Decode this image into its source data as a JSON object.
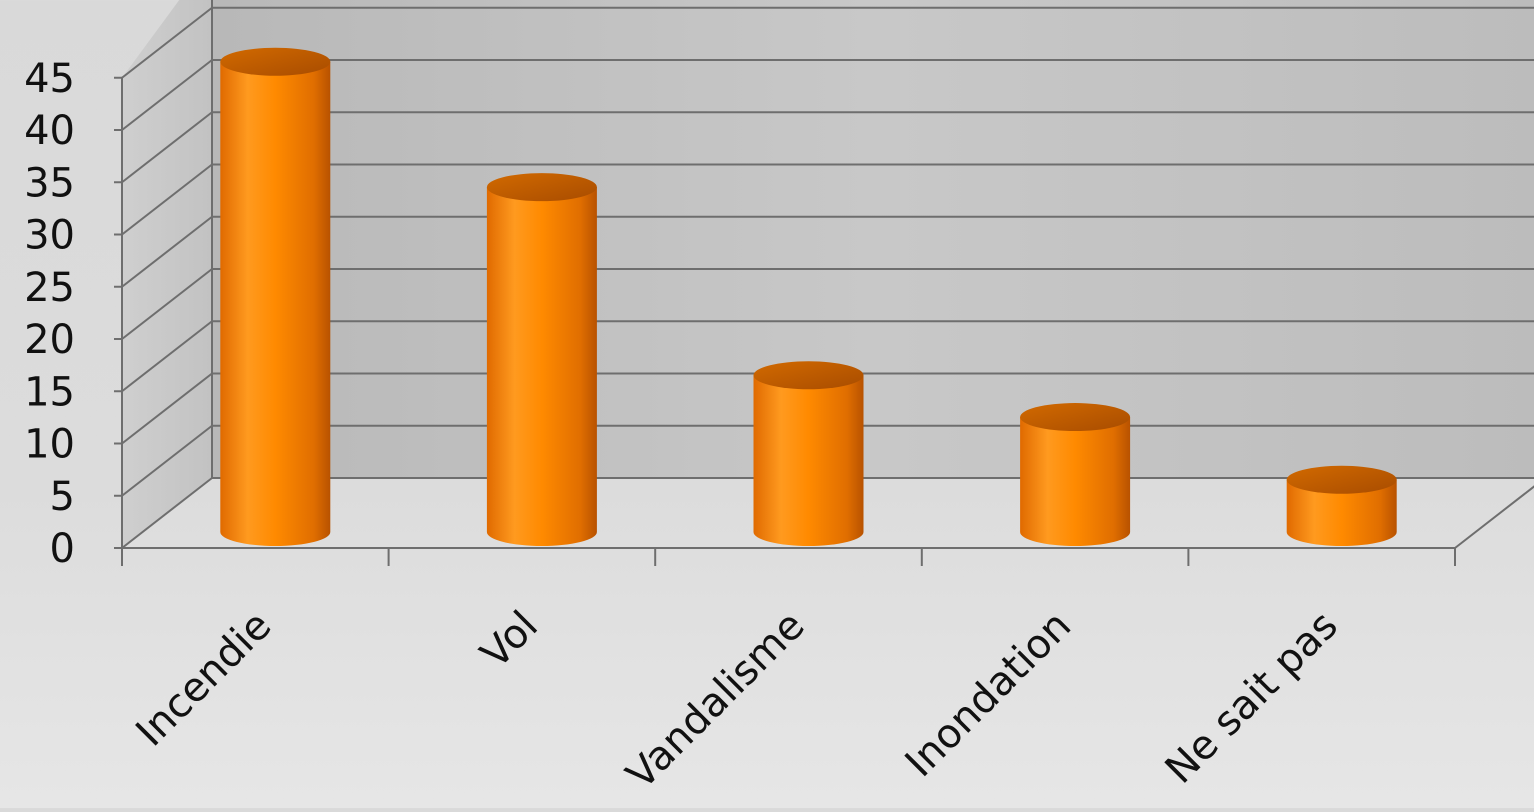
{
  "chart_data": {
    "type": "bar",
    "style": "3d-cylinder",
    "categories": [
      "Incendie",
      "Vol",
      "Vandalisme",
      "Inondation",
      "Ne sait pas"
    ],
    "values": [
      45,
      33,
      15,
      11,
      5
    ],
    "ylim": [
      0,
      45
    ],
    "yticks": [
      "0",
      "5",
      "10",
      "15",
      "20",
      "25",
      "30",
      "35",
      "40",
      "45"
    ],
    "grid": true,
    "legend": "none",
    "colors": {
      "bar_light": "#ffb04d",
      "bar_mid": "#ff8a00",
      "bar_dark": "#c85a00",
      "bar_top": "#c06000",
      "plot_bg": "#bdbdbd",
      "wall_light": "#dcdcdc",
      "grid": "#6e6e6e",
      "text": "#111111"
    }
  }
}
